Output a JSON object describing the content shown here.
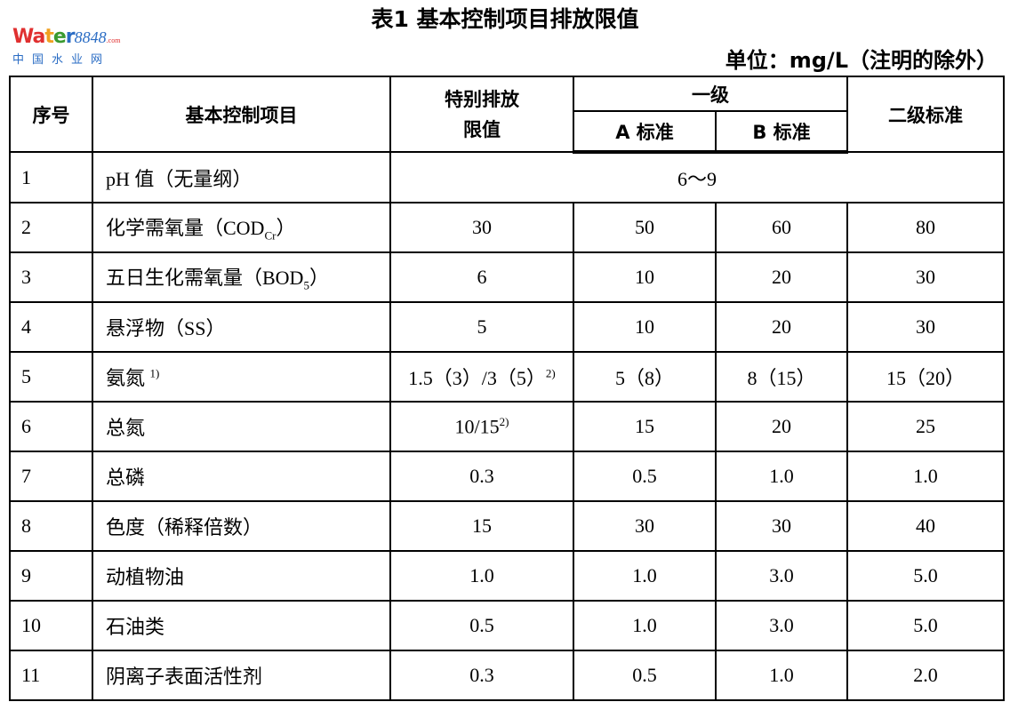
{
  "title": "表1  基本控制项目排放限值",
  "unit": "单位：mg/L（注明的除外）",
  "headers": {
    "seq": "序号",
    "item": "基本控制项目",
    "special": "特别排放限值",
    "level1": "一级",
    "a": "A 标准",
    "b": "B 标准",
    "level2": "二级标准"
  },
  "rows": [
    {
      "no": "1",
      "item": "pH 值（无量纲）",
      "merged": "6～9"
    },
    {
      "no": "2",
      "item": "化学需氧量（COD",
      "sub": "Cr",
      "suffix": "）",
      "special": "30",
      "a": "50",
      "b": "60",
      "l2": "80"
    },
    {
      "no": "3",
      "item": "五日生化需氧量（BOD",
      "sub": "5",
      "suffix": "）",
      "special": "6",
      "a": "10",
      "b": "20",
      "l2": "30"
    },
    {
      "no": "4",
      "item": "悬浮物（SS）",
      "special": "5",
      "a": "10",
      "b": "20",
      "l2": "30"
    },
    {
      "no": "5",
      "item": "氨氮 ",
      "sup": "1)",
      "special": "1.5（3）/3（5）",
      "special_sup": "2)",
      "a": "5（8）",
      "b": "8（15）",
      "l2": "15（20）"
    },
    {
      "no": "6",
      "item": "总氮",
      "special": "10/15",
      "special_sup": "2)",
      "a": "15",
      "b": "20",
      "l2": "25"
    },
    {
      "no": "7",
      "item": "总磷",
      "special": "0.3",
      "a": "0.5",
      "b": "1.0",
      "l2": "1.0"
    },
    {
      "no": "8",
      "item": "色度（稀释倍数）",
      "special": "15",
      "a": "30",
      "b": "30",
      "l2": "40"
    },
    {
      "no": "9",
      "item": "动植物油",
      "special": "1.0",
      "a": "1.0",
      "b": "3.0",
      "l2": "5.0"
    },
    {
      "no": "10",
      "item": "石油类",
      "special": "0.5",
      "a": "1.0",
      "b": "3.0",
      "l2": "5.0"
    },
    {
      "no": "11",
      "item": "阴离子表面活性剂",
      "special": "0.3",
      "a": "0.5",
      "b": "1.0",
      "l2": "2.0"
    }
  ],
  "watermark": {
    "brand": "Water8848",
    "domain": ".com",
    "cn": "中国水业网"
  }
}
